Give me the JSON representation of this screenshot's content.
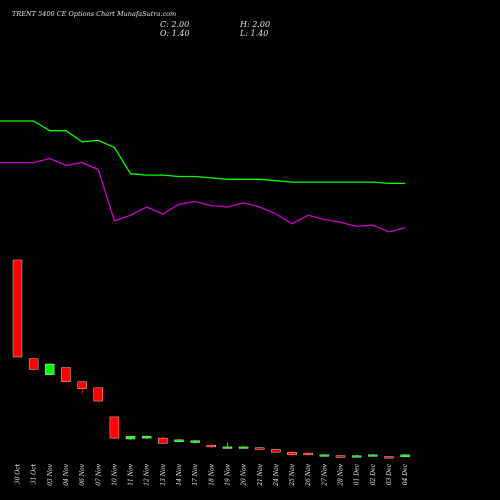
{
  "header": {
    "title": "TRENT 5400 CE Options Chart MunafaSutra.com",
    "close_label": "C: 2.00",
    "high_label": "H: 2.00",
    "open_label": "O: 1.40",
    "low_label": "L: 1.40"
  },
  "colors": {
    "background": "#000000",
    "up": "#00ff00",
    "down": "#ff0000",
    "line_upper": "#00ff00",
    "line_lower": "#cc00cc",
    "text": "#e8e8e8"
  },
  "chart_data": {
    "type": "candlestick",
    "dates": [
      "30 Oct",
      "31 Oct",
      "03 Nov",
      "04 Nov",
      "06 Nov",
      "07 Nov",
      "10 Nov",
      "11 Nov",
      "12 Nov",
      "13 Nov",
      "14 Nov",
      "17 Nov",
      "18 Nov",
      "19 Nov",
      "20 Nov",
      "21 Nov",
      "24 Nov",
      "25 Nov",
      "26 Nov",
      "27 Nov",
      "28 Nov",
      "01 Dec",
      "02 Dec",
      "03 Dec",
      "04 Dec"
    ],
    "candles": [
      {
        "open": 190,
        "close": 80,
        "high": 190,
        "low": 80
      },
      {
        "open": 78,
        "close": 66,
        "high": 78,
        "low": 65
      },
      {
        "open": 60,
        "close": 72,
        "high": 73,
        "low": 59
      },
      {
        "open": 68,
        "close": 52,
        "high": 68,
        "low": 51
      },
      {
        "open": 52,
        "close": 44,
        "high": 52,
        "low": 38
      },
      {
        "open": 45,
        "close": 30,
        "high": 45,
        "low": 29
      },
      {
        "open": 12,
        "close": -12,
        "high": 12,
        "low": -13
      },
      {
        "open": -13,
        "close": -10,
        "high": -10,
        "low": -14
      },
      {
        "open": -12,
        "close": -10,
        "high": -9,
        "low": -13
      },
      {
        "open": -12,
        "close": -18,
        "high": -10,
        "low": -19
      },
      {
        "open": -16,
        "close": -14,
        "high": -13,
        "low": -17
      },
      {
        "open": -17,
        "close": -15,
        "high": -14,
        "low": -18
      },
      {
        "open": -20,
        "close": -22,
        "high": -19,
        "low": -23
      },
      {
        "open": -23,
        "close": -22,
        "high": -17,
        "low": -24
      },
      {
        "open": -23,
        "close": -22,
        "high": -21,
        "low": -24
      },
      {
        "open": -23,
        "close": -24,
        "high": -22,
        "low": -25
      },
      {
        "open": -25,
        "close": -28,
        "high": -24,
        "low": -28
      },
      {
        "open": -28,
        "close": -31,
        "high": -27,
        "low": -32
      },
      {
        "open": -29,
        "close": -31,
        "high": -28,
        "low": -32
      },
      {
        "open": -32,
        "close": -31,
        "high": -30,
        "low": -32
      },
      {
        "open": -32,
        "close": -33,
        "high": -31,
        "low": -33
      },
      {
        "open": -33,
        "close": -32,
        "high": -31,
        "low": -33
      },
      {
        "open": -32,
        "close": -31,
        "high": -30,
        "low": -32
      },
      {
        "open": -33,
        "close": -34,
        "high": -32,
        "low": -34
      },
      {
        "open": -33,
        "close": -31,
        "high": -30,
        "low": -33
      }
    ],
    "line_upper": [
      118,
      118,
      111,
      111,
      103,
      104,
      99,
      80,
      79,
      79,
      78,
      78,
      77,
      76,
      76,
      76,
      75,
      74,
      74,
      74,
      74,
      74,
      74,
      73,
      73
    ],
    "line_lower": [
      88,
      88,
      91,
      86,
      88,
      83,
      46,
      50,
      56,
      51,
      58,
      60,
      57,
      56,
      59,
      56,
      51,
      44,
      50,
      47,
      45,
      42,
      43,
      38,
      41
    ]
  }
}
